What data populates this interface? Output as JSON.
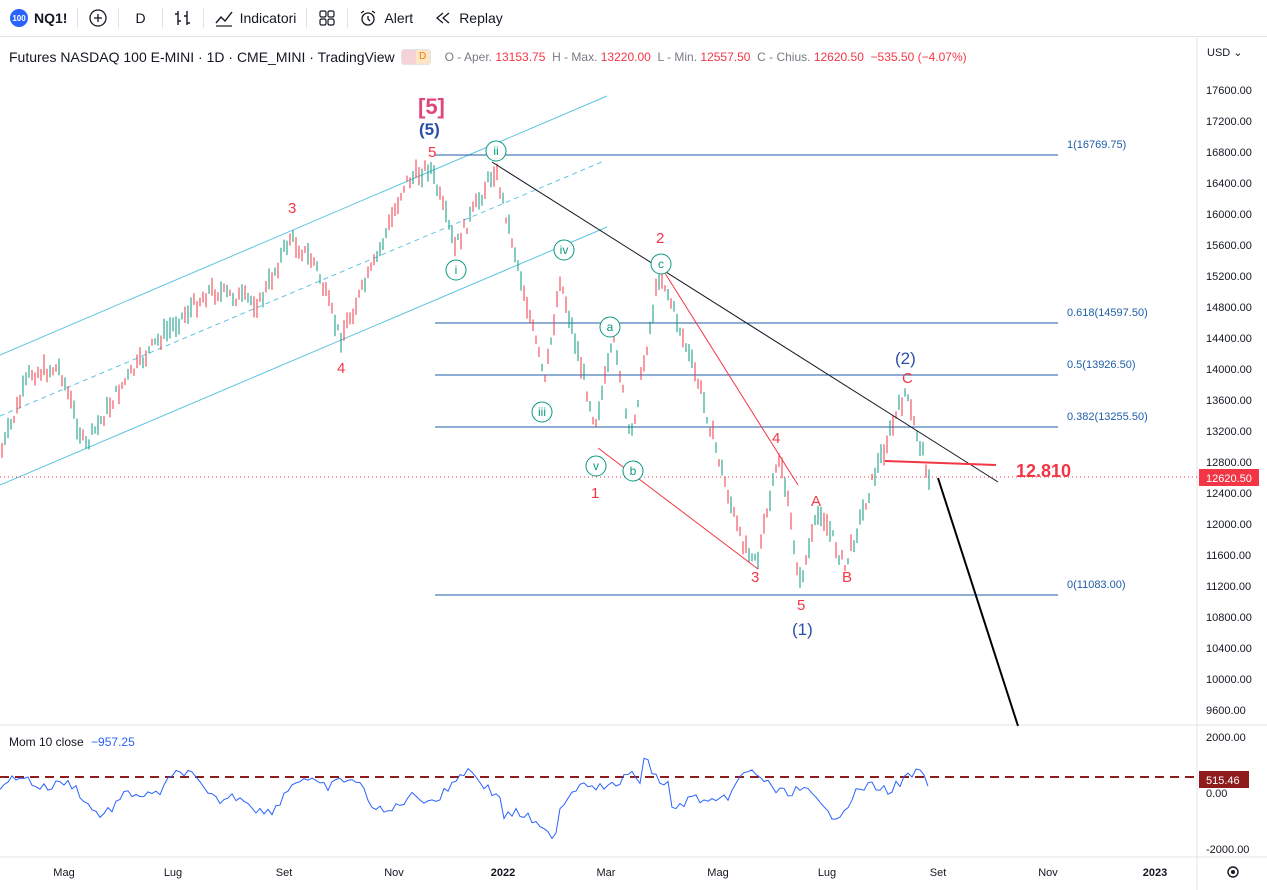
{
  "toolbar": {
    "symbol_badge": "100",
    "symbol": "NQ1!",
    "interval": "D",
    "indicators_label": "Indicatori",
    "alert_label": "Alert",
    "replay_label": "Replay"
  },
  "legend": {
    "title": "Futures NASDAQ 100 E-MINI · 1D · CME_MINI · TradingView",
    "o_label": "O - Aper.",
    "o_val": "13153.75",
    "h_label": "H - Max.",
    "h_val": "13220.00",
    "l_label": "L - Min.",
    "l_val": "12557.50",
    "c_label": "C - Chius.",
    "c_val": "12620.50",
    "chg": "−535.50 (−4.07%)",
    "badge_letter": "D"
  },
  "currency": "USD",
  "price_axis": [
    "17600.00",
    "17200.00",
    "16800.00",
    "16400.00",
    "16000.00",
    "15600.00",
    "15200.00",
    "14800.00",
    "14400.00",
    "14000.00",
    "13600.00",
    "13200.00",
    "12800.00",
    "12400.00",
    "12000.00",
    "11600.00",
    "11200.00",
    "10800.00",
    "10400.00",
    "10000.00",
    "9600.00"
  ],
  "current_price": "12620.50",
  "time_axis": [
    "Mag",
    "Lug",
    "Set",
    "Nov",
    "2022",
    "Mar",
    "Mag",
    "Lug",
    "Set",
    "Nov",
    "2023"
  ],
  "fib_levels": [
    "1(16769.75)",
    "0.618(14597.50)",
    "0.5(13926.50)",
    "0.382(13255.50)",
    "0(11083.00)"
  ],
  "wave_labels": {
    "big5": "[5]",
    "p5": "(5)",
    "p2": "(2)",
    "p1": "(1)",
    "w3": "3",
    "w4": "4",
    "w5": "5",
    "w1": "1",
    "w2": "2",
    "w3b": "3",
    "w4b": "4",
    "w5b": "5",
    "wA": "A",
    "wB": "B",
    "wC": "C",
    "ci": "i",
    "cii": "ii",
    "ciii": "iii",
    "civ": "iv",
    "cv": "v",
    "ca": "a",
    "cb": "b",
    "cc": "c"
  },
  "level_text": "12.810",
  "momentum": {
    "label": "Mom 10 close",
    "value": "−957.25",
    "axis": [
      "2000.00",
      "0.00",
      "-2000.00"
    ],
    "badge": "515.46"
  },
  "colors": {
    "red": "#f23645",
    "blue": "#2962ff",
    "teal": "#089981",
    "fib": "#1e5ea8",
    "channel": "#5ec4e0",
    "darkred": "#8e1c1c"
  }
}
